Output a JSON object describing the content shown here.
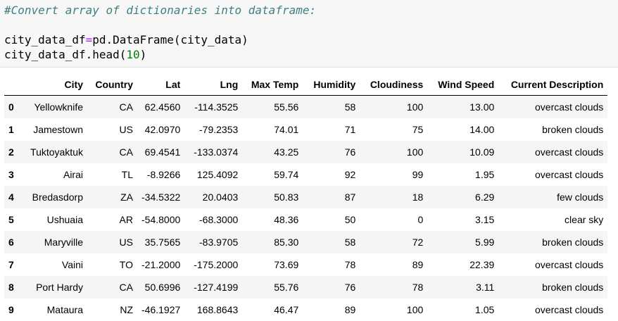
{
  "code": {
    "comment": "#Convert array of dictionaries into dataframe:",
    "line1_var": "city_data_df",
    "line1_op": "=",
    "line1_rest": "pd.DataFrame(city_data)",
    "line2_pre": "city_data_df.head(",
    "line2_num": "10",
    "line2_post": ")"
  },
  "table": {
    "index_header": "",
    "columns": [
      "City",
      "Country",
      "Lat",
      "Lng",
      "Max Temp",
      "Humidity",
      "Cloudiness",
      "Wind Speed",
      "Current Description"
    ],
    "rows": [
      {
        "index": "0",
        "cells": [
          "Yellowknife",
          "CA",
          "62.4560",
          "-114.3525",
          "55.56",
          "58",
          "100",
          "13.00",
          "overcast clouds"
        ]
      },
      {
        "index": "1",
        "cells": [
          "Jamestown",
          "US",
          "42.0970",
          "-79.2353",
          "74.01",
          "71",
          "75",
          "14.00",
          "broken clouds"
        ]
      },
      {
        "index": "2",
        "cells": [
          "Tuktoyaktuk",
          "CA",
          "69.4541",
          "-133.0374",
          "43.25",
          "76",
          "100",
          "10.09",
          "overcast clouds"
        ]
      },
      {
        "index": "3",
        "cells": [
          "Airai",
          "TL",
          "-8.9266",
          "125.4092",
          "59.74",
          "92",
          "99",
          "1.95",
          "overcast clouds"
        ]
      },
      {
        "index": "4",
        "cells": [
          "Bredasdorp",
          "ZA",
          "-34.5322",
          "20.0403",
          "50.83",
          "87",
          "18",
          "6.29",
          "few clouds"
        ]
      },
      {
        "index": "5",
        "cells": [
          "Ushuaia",
          "AR",
          "-54.8000",
          "-68.3000",
          "48.36",
          "50",
          "0",
          "3.15",
          "clear sky"
        ]
      },
      {
        "index": "6",
        "cells": [
          "Maryville",
          "US",
          "35.7565",
          "-83.9705",
          "85.30",
          "58",
          "72",
          "5.99",
          "broken clouds"
        ]
      },
      {
        "index": "7",
        "cells": [
          "Vaini",
          "TO",
          "-21.2000",
          "-175.2000",
          "73.69",
          "78",
          "89",
          "22.39",
          "overcast clouds"
        ]
      },
      {
        "index": "8",
        "cells": [
          "Port Hardy",
          "CA",
          "50.6996",
          "-127.4199",
          "55.76",
          "76",
          "78",
          "3.11",
          "broken clouds"
        ]
      },
      {
        "index": "9",
        "cells": [
          "Mataura",
          "NZ",
          "-46.1927",
          "168.8643",
          "46.47",
          "89",
          "100",
          "1.05",
          "overcast clouds"
        ]
      }
    ]
  }
}
